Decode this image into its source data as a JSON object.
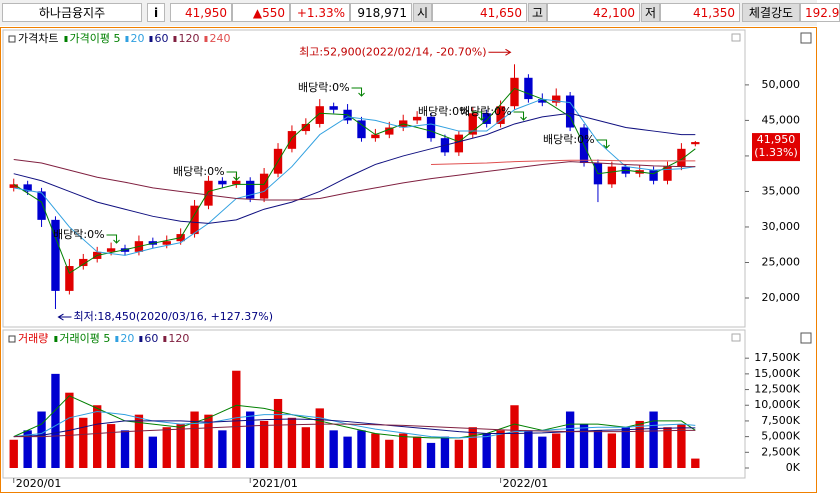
{
  "header": {
    "name": "하나금융지주",
    "info": "i",
    "price": "41,950",
    "change": "▲550",
    "rate": "+1.33%",
    "volume": "918,971",
    "open_label": "시",
    "open": "41,650",
    "high_label": "고",
    "high": "42,100",
    "low_label": "저",
    "low": "41,350",
    "strength_label": "체결강도",
    "strength": "192.9"
  },
  "chart_data": [
    {
      "type": "candlestick",
      "title": "가격차트",
      "up_color": "#e00000",
      "down_color": "#0000d0",
      "x": [
        0,
        1,
        2,
        3,
        4,
        5,
        6,
        7,
        8,
        9,
        10,
        11,
        12,
        13,
        14,
        15,
        16,
        17,
        18,
        19,
        20,
        21,
        22,
        23,
        24,
        25,
        26,
        27,
        28,
        29,
        30,
        31,
        32,
        33,
        34,
        35,
        36,
        37,
        38,
        39,
        40,
        41,
        42,
        43,
        44,
        45,
        46,
        47,
        48,
        49
      ],
      "open": [
        35500,
        36000,
        35000,
        31000,
        21000,
        24500,
        25500,
        26500,
        27000,
        26500,
        28000,
        27500,
        28000,
        29000,
        33000,
        36500,
        36000,
        36500,
        34000,
        37500,
        41000,
        43500,
        44500,
        47000,
        46500,
        45000,
        42500,
        43000,
        44000,
        45000,
        45500,
        42500,
        40500,
        43000,
        46000,
        44500,
        47000,
        51000,
        48000,
        47500,
        48500,
        44000,
        39000,
        36000,
        38500,
        37500,
        38000,
        36500,
        38500,
        41650
      ],
      "high": [
        36800,
        36500,
        35500,
        31500,
        25500,
        26200,
        27200,
        27800,
        27500,
        28800,
        28500,
        28800,
        29800,
        33800,
        37200,
        37000,
        37500,
        37000,
        38300,
        41800,
        44300,
        45300,
        48000,
        47500,
        47300,
        45500,
        43800,
        44800,
        45800,
        46300,
        46000,
        43000,
        43500,
        46800,
        46500,
        47800,
        52900,
        51500,
        48800,
        49500,
        49000,
        44500,
        39500,
        39200,
        38800,
        38700,
        38500,
        39200,
        41800,
        42100
      ],
      "low": [
        35000,
        34500,
        30000,
        18450,
        20500,
        24000,
        25000,
        26000,
        26000,
        26000,
        27000,
        27000,
        27500,
        28500,
        32500,
        35500,
        35500,
        33500,
        33500,
        37000,
        40500,
        43000,
        44000,
        46000,
        44500,
        42000,
        42000,
        42500,
        43500,
        44500,
        42000,
        40000,
        40000,
        42500,
        44000,
        44000,
        46500,
        47500,
        47000,
        47000,
        43500,
        38500,
        33500,
        35500,
        37000,
        37000,
        36000,
        36000,
        38000,
        41350
      ],
      "close": [
        36000,
        35000,
        31000,
        21000,
        24500,
        25500,
        26500,
        27000,
        26500,
        28000,
        27500,
        28000,
        29000,
        33000,
        36500,
        36000,
        36500,
        34000,
        37500,
        41000,
        43500,
        44500,
        47000,
        46500,
        45000,
        42500,
        43000,
        44000,
        45000,
        45500,
        42500,
        40500,
        43000,
        46000,
        44500,
        47000,
        51000,
        48000,
        47500,
        48500,
        44000,
        39000,
        36000,
        38500,
        37500,
        38000,
        36500,
        38500,
        41000,
        41950
      ],
      "xlim": [
        -0.7,
        52.5
      ],
      "xticks": [
        {
          "value": 0,
          "label": "2020/01"
        },
        {
          "value": 17,
          "label": "2021/01"
        },
        {
          "value": 35,
          "label": "2022/01"
        }
      ],
      "ylim": [
        16200,
        56600
      ],
      "yticks": [
        {
          "value": 20000,
          "label": "20,000"
        },
        {
          "value": 25000,
          "label": "25,000"
        },
        {
          "value": 30000,
          "label": "30,000"
        },
        {
          "value": 35000,
          "label": "35,000"
        },
        {
          "value": 40000,
          "label": "40,000"
        },
        {
          "value": 45000,
          "label": "45,000"
        },
        {
          "value": 50000,
          "label": "50,000"
        }
      ],
      "series": [
        {
          "name": "가격이평 5",
          "color": "#008000",
          "x": [
            0,
            2,
            4,
            6,
            8,
            10,
            12,
            14,
            16,
            18,
            20,
            22,
            24,
            26,
            28,
            30,
            32,
            34,
            36,
            38,
            40,
            42,
            44,
            46,
            48,
            49
          ],
          "values": [
            36000,
            33500,
            23500,
            26000,
            26800,
            27700,
            28500,
            35000,
            36000,
            36000,
            42500,
            46000,
            45800,
            43000,
            44500,
            43500,
            42000,
            45000,
            49500,
            48000,
            45500,
            37500,
            38000,
            37500,
            39500,
            41000
          ]
        },
        {
          "name": "20",
          "color": "#30a0e0",
          "x": [
            0,
            2,
            4,
            6,
            8,
            10,
            12,
            14,
            16,
            18,
            20,
            22,
            24,
            26,
            28,
            30,
            32,
            34,
            36,
            38,
            40,
            42,
            44,
            46,
            48,
            49
          ],
          "values": [
            35500,
            34800,
            30000,
            26500,
            26000,
            27000,
            27800,
            30500,
            34000,
            35000,
            38500,
            43000,
            45500,
            45000,
            44000,
            44500,
            43500,
            43500,
            46500,
            48000,
            47500,
            42000,
            38500,
            38000,
            38200,
            38500
          ]
        },
        {
          "name": "60",
          "color": "#101080",
          "x": [
            0,
            2,
            4,
            6,
            8,
            10,
            12,
            14,
            16,
            18,
            20,
            22,
            24,
            26,
            28,
            30,
            32,
            34,
            36,
            38,
            40,
            42,
            44,
            46,
            48,
            49
          ],
          "values": [
            37500,
            36500,
            35000,
            33500,
            32500,
            31500,
            30800,
            30500,
            31000,
            32500,
            33500,
            35000,
            37000,
            38800,
            40000,
            41000,
            42000,
            43000,
            44500,
            45500,
            46000,
            45000,
            44000,
            43500,
            43000,
            43000
          ]
        },
        {
          "name": "120",
          "color": "#802040",
          "x": [
            0,
            2,
            4,
            6,
            8,
            10,
            12,
            14,
            16,
            18,
            20,
            22,
            24,
            26,
            28,
            30,
            32,
            34,
            36,
            38,
            40,
            42,
            44,
            46,
            48,
            49
          ],
          "values": [
            39500,
            39000,
            38000,
            37000,
            36300,
            35500,
            35000,
            34500,
            34000,
            33800,
            33800,
            34000,
            34800,
            35500,
            36200,
            36800,
            37300,
            37800,
            38300,
            38800,
            39200,
            39000,
            38800,
            38600,
            38500,
            38500
          ]
        },
        {
          "name": "240",
          "color": "#e05050",
          "x": [
            0,
            2,
            4,
            6,
            8,
            10,
            12,
            14,
            16,
            18,
            20,
            22,
            24,
            26,
            28,
            30,
            32,
            34,
            36,
            38,
            40,
            42,
            44,
            46,
            48,
            49
          ],
          "values": [
            null,
            null,
            null,
            null,
            null,
            null,
            null,
            null,
            null,
            null,
            null,
            null,
            null,
            null,
            null,
            38800,
            38900,
            39000,
            39200,
            39300,
            39400,
            39400,
            39300,
            39300,
            39300,
            39300
          ]
        }
      ],
      "high_label": "최고:52,900(2022/02/14, -20.70%)",
      "low_label": "최저:18,450(2020/03/16, +127.37%)",
      "dividend_labels": [
        "배당락:0%",
        "배당락:0%",
        "배당락:0%",
        "배당락:0%",
        "배당락:0%",
        "배당락:0%"
      ],
      "last_price_label": "41,950",
      "last_rate_label": "(1.33%)"
    },
    {
      "type": "bar",
      "title": "거래량",
      "up_color": "#e00000",
      "down_color": "#0000d0",
      "values": [
        4500,
        6000,
        9000,
        15000,
        12000,
        8000,
        10000,
        7000,
        6000,
        8500,
        5000,
        6500,
        7000,
        9000,
        8500,
        6000,
        15500,
        9000,
        7500,
        11000,
        8000,
        6500,
        9500,
        6000,
        5000,
        6000,
        5500,
        4500,
        5500,
        5000,
        4000,
        5000,
        4500,
        6500,
        5500,
        6000,
        10000,
        6000,
        5000,
        5500,
        9000,
        7000,
        6000,
        5500,
        6500,
        7500,
        9000,
        6500,
        7000,
        1500
      ],
      "ylim": [
        0,
        19600
      ],
      "yticks": [
        {
          "value": 0,
          "label": "0K"
        },
        {
          "value": 2500,
          "label": "2,500K"
        },
        {
          "value": 5000,
          "label": "5,000K"
        },
        {
          "value": 7500,
          "label": "7,500K"
        },
        {
          "value": 10000,
          "label": "10,000K"
        },
        {
          "value": 12500,
          "label": "12,500K"
        },
        {
          "value": 15000,
          "label": "15,000K"
        },
        {
          "value": 17500,
          "label": "17,500K"
        }
      ],
      "series": [
        {
          "name": "거래이평 5",
          "color": "#008000",
          "x": [
            0,
            2,
            4,
            6,
            8,
            10,
            12,
            14,
            16,
            18,
            20,
            22,
            24,
            26,
            28,
            30,
            32,
            34,
            36,
            38,
            40,
            42,
            44,
            46,
            48,
            49
          ],
          "values": [
            5000,
            7000,
            11500,
            9500,
            7500,
            7000,
            6500,
            8000,
            10000,
            9500,
            8500,
            7500,
            6500,
            5500,
            5000,
            4800,
            4800,
            5500,
            7000,
            6000,
            7000,
            7000,
            6500,
            7500,
            7500,
            6000
          ]
        },
        {
          "name": "20",
          "color": "#30a0e0",
          "x": [
            0,
            2,
            4,
            6,
            8,
            10,
            12,
            14,
            16,
            18,
            20,
            22,
            24,
            26,
            28,
            30,
            32,
            34,
            36,
            38,
            40,
            42,
            44,
            46,
            48,
            49
          ],
          "values": [
            5000,
            5500,
            8000,
            9000,
            8500,
            7500,
            7000,
            7200,
            8000,
            8500,
            8500,
            8000,
            7000,
            6200,
            5600,
            5000,
            4800,
            5000,
            5800,
            6000,
            6300,
            6500,
            6500,
            6800,
            7000,
            6800
          ]
        },
        {
          "name": "60",
          "color": "#101080",
          "x": [
            0,
            2,
            4,
            6,
            8,
            10,
            12,
            14,
            16,
            18,
            20,
            22,
            24,
            26,
            28,
            30,
            32,
            34,
            36,
            38,
            40,
            42,
            44,
            46,
            48,
            49
          ],
          "values": [
            5000,
            5200,
            6000,
            7000,
            7500,
            7500,
            7500,
            7300,
            7500,
            7700,
            7800,
            7700,
            7400,
            7000,
            6600,
            6200,
            5800,
            5500,
            5500,
            5600,
            5800,
            6000,
            6100,
            6300,
            6400,
            6400
          ]
        },
        {
          "name": "120",
          "color": "#802040",
          "x": [
            0,
            2,
            4,
            6,
            8,
            10,
            12,
            14,
            16,
            18,
            20,
            22,
            24,
            26,
            28,
            30,
            32,
            34,
            36,
            38,
            40,
            42,
            44,
            46,
            48,
            49
          ],
          "values": [
            5000,
            5000,
            5200,
            5500,
            5800,
            6000,
            6200,
            6400,
            6600,
            6800,
            6900,
            7000,
            7000,
            6900,
            6800,
            6600,
            6400,
            6200,
            6000,
            5900,
            5800,
            5800,
            5800,
            5900,
            6000,
            6000
          ]
        }
      ]
    }
  ]
}
